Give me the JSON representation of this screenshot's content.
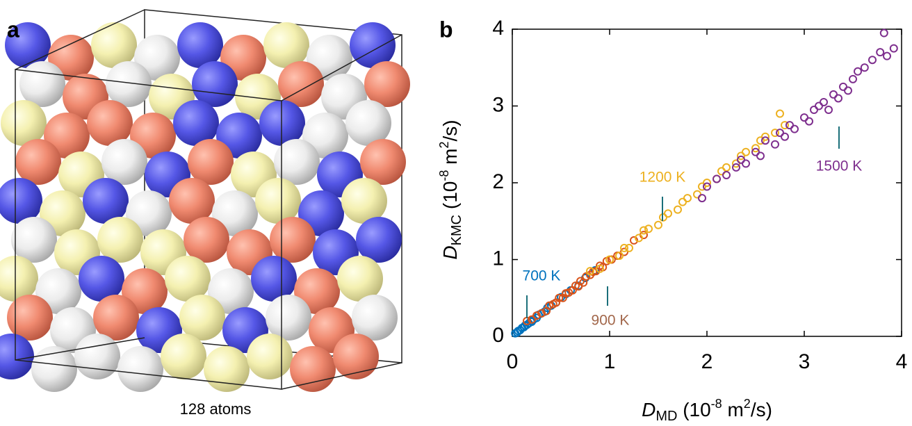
{
  "panel_a": {
    "label": "a",
    "caption": "128 atoms"
  },
  "chart_data": {
    "type": "scatter",
    "panel_label": "b",
    "xlabel": {
      "symbol": "D",
      "subscript": "MD",
      "unit_prefix": " (10",
      "exponent": "-8",
      "unit_mid": " m",
      "unit_power": "2",
      "unit_suffix": "/s)"
    },
    "ylabel": {
      "symbol": "D",
      "subscript": "KMC",
      "unit_prefix": " (10",
      "exponent": "-8",
      "unit_mid": " m",
      "unit_power": "2",
      "unit_suffix": "/s)"
    },
    "xlim": [
      0,
      4
    ],
    "ylim": [
      0,
      4
    ],
    "xticks": [
      0,
      1,
      2,
      3,
      4
    ],
    "yticks": [
      0,
      1,
      2,
      3,
      4
    ],
    "marker": "open-circle",
    "series": [
      {
        "name": "700 K",
        "color": "#0072bd",
        "label_color": "#0072bd",
        "x": [
          0.03,
          0.05,
          0.06,
          0.08,
          0.1,
          0.12,
          0.13,
          0.15,
          0.17,
          0.19,
          0.2,
          0.22,
          0.25,
          0.27,
          0.3,
          0.33,
          0.36,
          0.4,
          0.45,
          0.5,
          0.55,
          0.6,
          0.68,
          0.75,
          0.85
        ],
        "values": [
          0.04,
          0.05,
          0.07,
          0.08,
          0.11,
          0.12,
          0.14,
          0.15,
          0.17,
          0.2,
          0.19,
          0.22,
          0.24,
          0.28,
          0.3,
          0.32,
          0.37,
          0.4,
          0.44,
          0.51,
          0.55,
          0.6,
          0.66,
          0.76,
          0.86
        ]
      },
      {
        "name": "900 K",
        "color": "#d95319",
        "label_color": "#a2674b",
        "x": [
          0.15,
          0.2,
          0.25,
          0.3,
          0.35,
          0.38,
          0.42,
          0.45,
          0.48,
          0.52,
          0.55,
          0.58,
          0.62,
          0.65,
          0.68,
          0.7,
          0.73,
          0.76,
          0.8,
          0.83,
          0.86,
          0.9,
          0.93,
          0.97,
          1.02,
          1.08,
          1.15,
          1.25,
          1.35
        ],
        "values": [
          0.2,
          0.22,
          0.27,
          0.3,
          0.33,
          0.4,
          0.42,
          0.44,
          0.5,
          0.5,
          0.56,
          0.57,
          0.6,
          0.66,
          0.65,
          0.72,
          0.7,
          0.78,
          0.8,
          0.84,
          0.85,
          0.92,
          0.9,
          0.98,
          1.0,
          1.05,
          1.1,
          1.25,
          1.32
        ]
      },
      {
        "name": "1200 K",
        "color": "#edb120",
        "label_color": "#edb120",
        "x": [
          0.8,
          0.9,
          1.0,
          1.1,
          1.15,
          1.2,
          1.3,
          1.35,
          1.4,
          1.5,
          1.55,
          1.6,
          1.7,
          1.75,
          1.8,
          1.9,
          1.95,
          2.0,
          2.1,
          2.15,
          2.2,
          2.3,
          2.35,
          2.4,
          2.5,
          2.55,
          2.6,
          2.7,
          2.8,
          2.75
        ],
        "values": [
          0.85,
          0.88,
          1.0,
          1.05,
          1.15,
          1.15,
          1.28,
          1.38,
          1.4,
          1.45,
          1.55,
          1.6,
          1.65,
          1.75,
          1.8,
          1.85,
          1.95,
          2.0,
          2.05,
          2.15,
          2.2,
          2.25,
          2.35,
          2.4,
          2.45,
          2.55,
          2.6,
          2.65,
          2.75,
          2.9
        ]
      },
      {
        "name": "1500 K",
        "color": "#7e2f8e",
        "label_color": "#7e2f8e",
        "x": [
          1.95,
          2.0,
          2.1,
          2.2,
          2.3,
          2.35,
          2.4,
          2.5,
          2.55,
          2.6,
          2.7,
          2.75,
          2.8,
          2.85,
          2.9,
          3.0,
          3.05,
          3.1,
          3.15,
          3.2,
          3.25,
          3.3,
          3.35,
          3.4,
          3.45,
          3.5,
          3.55,
          3.62,
          3.7,
          3.78,
          3.82,
          3.85,
          3.92
        ],
        "values": [
          1.8,
          1.95,
          2.05,
          2.1,
          2.2,
          2.3,
          2.25,
          2.4,
          2.35,
          2.55,
          2.5,
          2.65,
          2.6,
          2.75,
          2.7,
          2.85,
          2.8,
          2.95,
          3.0,
          3.05,
          2.95,
          3.15,
          3.1,
          3.25,
          3.2,
          3.35,
          3.45,
          3.5,
          3.6,
          3.7,
          3.95,
          3.65,
          3.75
        ]
      }
    ]
  }
}
